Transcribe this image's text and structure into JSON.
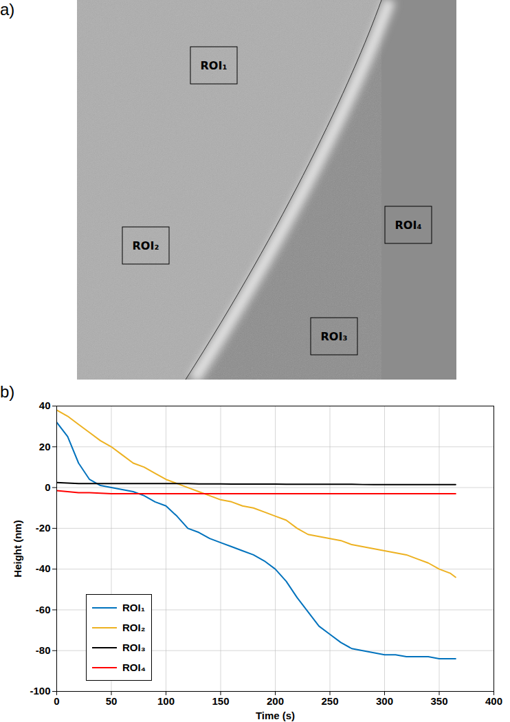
{
  "panel_labels": [
    "a)",
    "b)"
  ],
  "image": {
    "rois": [
      "ROI₁",
      "ROI₂",
      "ROI₃",
      "ROI₄"
    ]
  },
  "chart_data": {
    "type": "line",
    "xlabel": "Time (s)",
    "ylabel": "Height (nm)",
    "x": [
      0,
      10,
      20,
      30,
      40,
      50,
      60,
      70,
      80,
      90,
      100,
      110,
      120,
      130,
      140,
      150,
      160,
      170,
      180,
      190,
      200,
      210,
      220,
      230,
      240,
      250,
      260,
      270,
      280,
      290,
      300,
      310,
      320,
      330,
      340,
      350,
      360,
      365
    ],
    "series": [
      {
        "name": "ROI₁",
        "color": "#0072BD",
        "values": [
          32,
          25,
          12,
          4,
          1,
          0,
          -1,
          -2,
          -4,
          -7,
          -9,
          -14,
          -20,
          -22,
          -25,
          -27,
          -29,
          -31,
          -33,
          -36,
          -40,
          -46,
          -54,
          -61,
          -68,
          -72,
          -76,
          -79,
          -80,
          -81,
          -82,
          -82,
          -83,
          -83,
          -83,
          -84,
          -84,
          -84
        ]
      },
      {
        "name": "ROI₂",
        "color": "#EDB120",
        "values": [
          38,
          35,
          31,
          27,
          23,
          20,
          16,
          12,
          10,
          7,
          4,
          2,
          0,
          -2,
          -4,
          -6,
          -7,
          -9,
          -10,
          -12,
          -14,
          -16,
          -20,
          -23,
          -24,
          -25,
          -26,
          -28,
          -29,
          -30,
          -31,
          -32,
          -33,
          -35,
          -37,
          -40,
          -42,
          -44
        ]
      },
      {
        "name": "ROI₃",
        "color": "#000000",
        "values": [
          2.5,
          2.2,
          2,
          2,
          2,
          2,
          2,
          2,
          2,
          2,
          2,
          2,
          2,
          1.8,
          1.8,
          1.8,
          1.7,
          1.7,
          1.7,
          1.7,
          1.7,
          1.6,
          1.6,
          1.6,
          1.6,
          1.6,
          1.6,
          1.6,
          1.5,
          1.5,
          1.5,
          1.5,
          1.5,
          1.5,
          1.5,
          1.5,
          1.5,
          1.5
        ]
      },
      {
        "name": "ROI₄",
        "color": "#FF0000",
        "values": [
          -1.5,
          -2,
          -2.5,
          -2.5,
          -2.8,
          -3,
          -3,
          -3,
          -3,
          -3,
          -3,
          -3,
          -3,
          -3,
          -3,
          -3,
          -3,
          -3,
          -3,
          -3,
          -3,
          -3,
          -3,
          -3,
          -3,
          -3,
          -3,
          -3,
          -3,
          -3,
          -3,
          -3,
          -3,
          -3,
          -3,
          -3,
          -3,
          -3
        ]
      }
    ],
    "xlim": [
      0,
      400
    ],
    "xticks": [
      0,
      50,
      100,
      150,
      200,
      250,
      300,
      350,
      400
    ],
    "ylim": [
      -100,
      40
    ],
    "yticks": [
      -100,
      -80,
      -60,
      -40,
      -20,
      0,
      20,
      40
    ],
    "grid": true,
    "legend": "lower left"
  }
}
